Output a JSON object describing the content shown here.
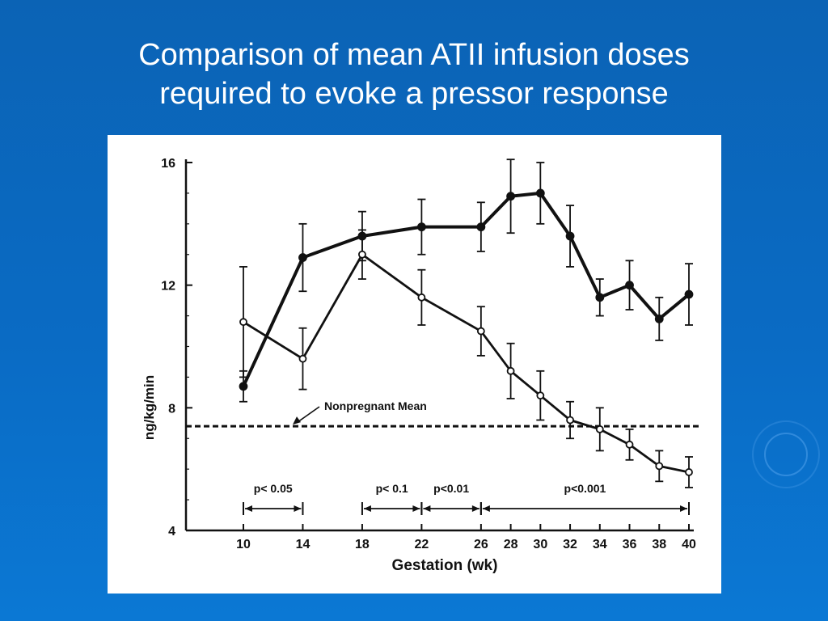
{
  "slide": {
    "title_line1": "Comparison of mean ATII infusion doses",
    "title_line2": "required to evoke a pressor response"
  },
  "colors": {
    "background": "#0b63b5",
    "title_text": "#ffffff",
    "panel": "#ffffff",
    "ink": "#111111"
  },
  "chart_data": {
    "type": "line",
    "xlabel": "Gestation (wk)",
    "ylabel": "ng/kg/min",
    "ylim": [
      4,
      16
    ],
    "xlim": [
      10,
      40
    ],
    "yticks": [
      4,
      8,
      12,
      16
    ],
    "xticks": [
      10,
      14,
      18,
      22,
      26,
      28,
      30,
      32,
      34,
      36,
      38,
      40
    ],
    "grid": false,
    "series": [
      {
        "marker": "filled",
        "x": [
          10,
          14,
          18,
          22,
          26,
          28,
          30,
          32,
          34,
          36,
          38,
          40
        ],
        "y": [
          8.7,
          12.9,
          13.6,
          13.9,
          13.9,
          14.9,
          15.0,
          13.6,
          11.6,
          12.0,
          10.9,
          11.7
        ],
        "err": [
          0.5,
          1.1,
          0.8,
          0.9,
          0.8,
          1.2,
          1.0,
          1.0,
          0.6,
          0.8,
          0.7,
          1.0
        ]
      },
      {
        "marker": "open",
        "x": [
          10,
          14,
          18,
          22,
          26,
          28,
          30,
          32,
          34,
          36,
          38,
          40
        ],
        "y": [
          10.8,
          9.6,
          13.0,
          11.6,
          10.5,
          9.2,
          8.4,
          7.6,
          7.3,
          6.8,
          6.1,
          5.9
        ],
        "err": [
          1.8,
          1.0,
          0.8,
          0.9,
          0.8,
          0.9,
          0.8,
          0.6,
          0.7,
          0.5,
          0.5,
          0.5
        ]
      }
    ],
    "reference_line": {
      "label": "Nonpregnant Mean",
      "y": 7.4
    },
    "significance_brackets": [
      {
        "label": "p< 0.05",
        "x_start": 10,
        "x_end": 14
      },
      {
        "label": "p< 0.1",
        "x_start": 18,
        "x_end": 22
      },
      {
        "label": "p<0.01",
        "x_start": 22,
        "x_end": 26
      },
      {
        "label": "p<0.001",
        "x_start": 26,
        "x_end": 40
      }
    ]
  }
}
